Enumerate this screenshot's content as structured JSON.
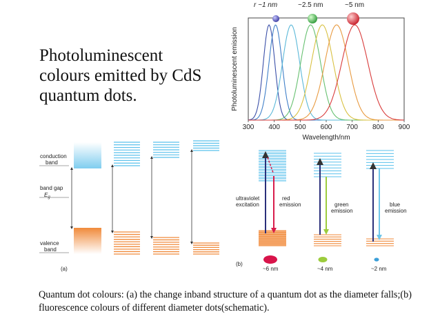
{
  "slide": {
    "title": "Photoluminescent colours emitted by CdS quantum dots.",
    "caption": "Quantum dot colours: (a) the change inband structure of a quantum dot as the diameter falls;(b) fluorescence colours of different diameter dots(schematic)."
  },
  "chart_data": {
    "type": "line",
    "ylabel": "Photoluminescent emission",
    "xlabel": "Wavelength/nm",
    "xlim": [
      300,
      900
    ],
    "xticks": [
      300,
      400,
      500,
      600,
      700,
      800,
      900
    ],
    "ylim": [
      0,
      1
    ],
    "size_labels": [
      "r ~1 nm",
      "~2.5 nm",
      "~5 nm"
    ],
    "series": [
      {
        "peak": 380,
        "width": 22,
        "color": "#3a4fa8"
      },
      {
        "peak": 405,
        "width": 25,
        "color": "#3f7fc8"
      },
      {
        "peak": 465,
        "width": 33,
        "color": "#5ab8d8"
      },
      {
        "peak": 540,
        "width": 38,
        "color": "#66c070"
      },
      {
        "peak": 585,
        "width": 42,
        "color": "#d8c040"
      },
      {
        "peak": 640,
        "width": 45,
        "color": "#e89a40"
      },
      {
        "peak": 710,
        "width": 50,
        "color": "#d83a3a"
      }
    ],
    "dots": [
      {
        "color": "#4b4fb8",
        "size": "small"
      },
      {
        "color": "#3fae4f",
        "size": "medium"
      },
      {
        "color": "#d8303a",
        "size": "large"
      }
    ]
  },
  "diagram_a": {
    "conduction_label": [
      "conduction",
      "band"
    ],
    "gap_label": [
      "band gap",
      "E"
    ],
    "gap_subscript": "g",
    "valence_label": [
      "valence",
      "band"
    ],
    "panel_label": "(a)"
  },
  "diagram_b": {
    "excitation_label": [
      "ultraviolet",
      "excitation"
    ],
    "red_label": [
      "red",
      "emission"
    ],
    "green_label": [
      "green",
      "emission"
    ],
    "blue_label": [
      "blue",
      "emission"
    ],
    "sizes": [
      "~6 nm",
      "~4 nm",
      "~2 nm"
    ],
    "panel_label": "(b)"
  },
  "colors": {
    "conduction": "#8fd4f0",
    "valence": "#f09850",
    "red_emission": "#d81b4a",
    "green_emission": "#9ccc3c",
    "blue_emission": "#6fc6ea",
    "excitation": "#2a2f7a"
  }
}
